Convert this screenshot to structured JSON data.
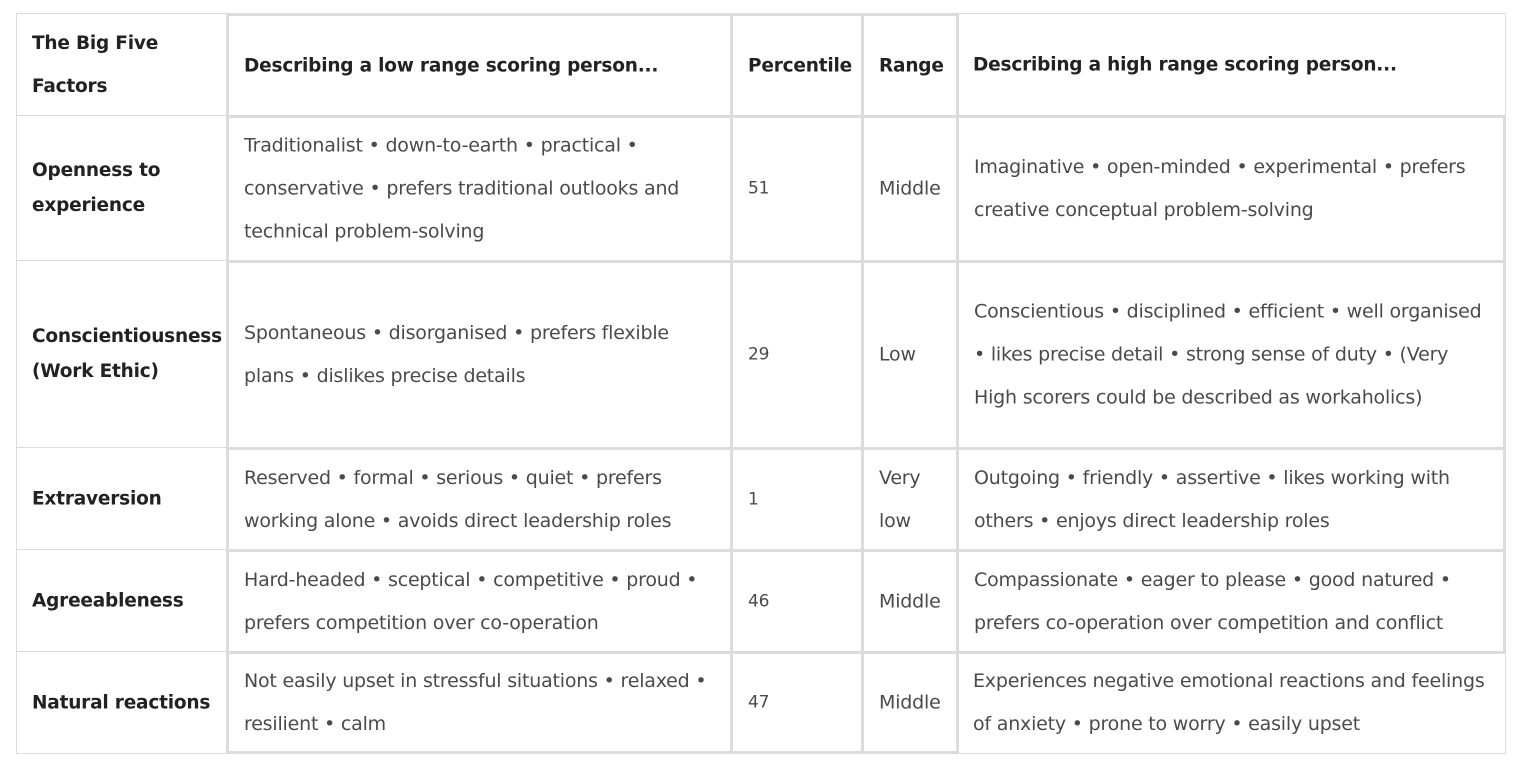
{
  "table": {
    "headers": {
      "factor": "The Big Five Factors",
      "low": "Describing a low range scoring person...",
      "percentile": "Percentile",
      "range": "Range",
      "high": "Describing a high range scoring person..."
    },
    "rows": [
      {
        "factor": "Openness to experience",
        "low": "Traditionalist • down-to-earth • practical • conservative • prefers traditional outlooks and technical problem-solving",
        "percentile": "51",
        "range": "Middle",
        "high": "Imaginative • open-minded • experimental • prefers creative conceptual problem-solving"
      },
      {
        "factor": "Conscientiousness (Work Ethic)",
        "low": "Spontaneous • disorganised • prefers flexible plans • dislikes precise details",
        "percentile": "29",
        "range": "Low",
        "high": "Conscientious • disciplined • efficient • well organised • likes precise detail • strong sense of duty • (Very High scorers could be described as workaholics)"
      },
      {
        "factor": "Extraversion",
        "low": "Reserved • formal • serious • quiet • prefers working alone • avoids direct leadership roles",
        "percentile": "1",
        "range": "Very low",
        "high": "Outgoing • friendly • assertive • likes working with others • enjoys direct leadership roles"
      },
      {
        "factor": "Agreeableness",
        "low": "Hard-headed • sceptical • competitive • proud • prefers competition over co-operation",
        "percentile": "46",
        "range": "Middle",
        "high": "Compassionate • eager to please • good natured • prefers co-operation over competition and conflict"
      },
      {
        "factor": "Natural reactions",
        "low": "Not easily upset in stressful situations • relaxed • resilient • calm",
        "percentile": "47",
        "range": "Middle",
        "high": "Experiences negative emotional reactions and feelings of anxiety • prone to worry • easily upset"
      }
    ]
  }
}
